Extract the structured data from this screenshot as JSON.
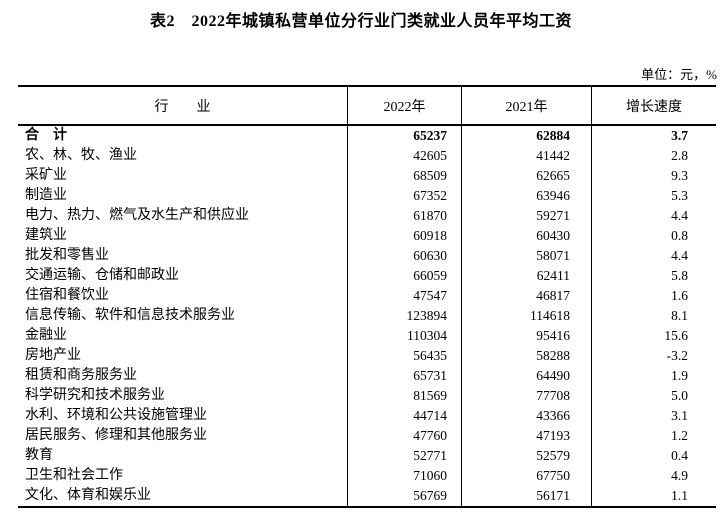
{
  "title": "表2　2022年城镇私营单位分行业门类就业人员年平均工资",
  "unit_label": "单位：元，%",
  "table": {
    "columns": {
      "industry": "行　　业",
      "y2022": "2022年",
      "y2021": "2021年",
      "growth": "增长速度"
    },
    "rows": [
      {
        "industry": "合　计",
        "y2022": "65237",
        "y2021": "62884",
        "growth": "3.7",
        "bold": true
      },
      {
        "industry": "农、林、牧、渔业",
        "y2022": "42605",
        "y2021": "41442",
        "growth": "2.8",
        "bold": false
      },
      {
        "industry": "采矿业",
        "y2022": "68509",
        "y2021": "62665",
        "growth": "9.3",
        "bold": false
      },
      {
        "industry": "制造业",
        "y2022": "67352",
        "y2021": "63946",
        "growth": "5.3",
        "bold": false
      },
      {
        "industry": "电力、热力、燃气及水生产和供应业",
        "y2022": "61870",
        "y2021": "59271",
        "growth": "4.4",
        "bold": false
      },
      {
        "industry": "建筑业",
        "y2022": "60918",
        "y2021": "60430",
        "growth": "0.8",
        "bold": false
      },
      {
        "industry": "批发和零售业",
        "y2022": "60630",
        "y2021": "58071",
        "growth": "4.4",
        "bold": false
      },
      {
        "industry": "交通运输、仓储和邮政业",
        "y2022": "66059",
        "y2021": "62411",
        "growth": "5.8",
        "bold": false
      },
      {
        "industry": "住宿和餐饮业",
        "y2022": "47547",
        "y2021": "46817",
        "growth": "1.6",
        "bold": false
      },
      {
        "industry": "信息传输、软件和信息技术服务业",
        "y2022": "123894",
        "y2021": "114618",
        "growth": "8.1",
        "bold": false
      },
      {
        "industry": "金融业",
        "y2022": "110304",
        "y2021": "95416",
        "growth": "15.6",
        "bold": false
      },
      {
        "industry": "房地产业",
        "y2022": "56435",
        "y2021": "58288",
        "growth": "-3.2",
        "bold": false
      },
      {
        "industry": "租赁和商务服务业",
        "y2022": "65731",
        "y2021": "64490",
        "growth": "1.9",
        "bold": false
      },
      {
        "industry": "科学研究和技术服务业",
        "y2022": "81569",
        "y2021": "77708",
        "growth": "5.0",
        "bold": false
      },
      {
        "industry": "水利、环境和公共设施管理业",
        "y2022": "44714",
        "y2021": "43366",
        "growth": "3.1",
        "bold": false
      },
      {
        "industry": "居民服务、修理和其他服务业",
        "y2022": "47760",
        "y2021": "47193",
        "growth": "1.2",
        "bold": false
      },
      {
        "industry": "教育",
        "y2022": "52771",
        "y2021": "52579",
        "growth": "0.4",
        "bold": false
      },
      {
        "industry": "卫生和社会工作",
        "y2022": "71060",
        "y2021": "67750",
        "growth": "4.9",
        "bold": false
      },
      {
        "industry": "文化、体育和娱乐业",
        "y2022": "56769",
        "y2021": "56171",
        "growth": "1.1",
        "bold": false
      }
    ]
  }
}
